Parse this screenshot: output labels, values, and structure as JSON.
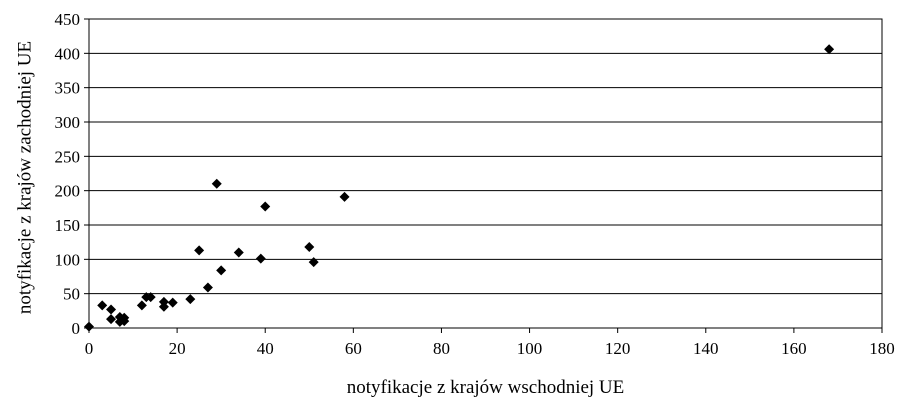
{
  "chart_data": {
    "type": "scatter",
    "xlabel": "notyfikacje z krajów wschodniej UE",
    "ylabel": "notyfikacje z krajów zachodniej UE",
    "xlim": [
      0,
      180
    ],
    "ylim": [
      0,
      450
    ],
    "x_ticks": [
      0,
      20,
      40,
      60,
      80,
      100,
      120,
      140,
      160,
      180
    ],
    "y_ticks": [
      0,
      50,
      100,
      150,
      200,
      250,
      300,
      350,
      400,
      450
    ],
    "grid": "horizontal",
    "marker": "diamond",
    "marker_color": "#000000",
    "points": [
      {
        "x": 0,
        "y": 2
      },
      {
        "x": 3,
        "y": 33
      },
      {
        "x": 5,
        "y": 27
      },
      {
        "x": 5,
        "y": 13
      },
      {
        "x": 7,
        "y": 16
      },
      {
        "x": 7,
        "y": 9
      },
      {
        "x": 8,
        "y": 15
      },
      {
        "x": 8,
        "y": 10
      },
      {
        "x": 12,
        "y": 33
      },
      {
        "x": 13,
        "y": 45
      },
      {
        "x": 14,
        "y": 45
      },
      {
        "x": 17,
        "y": 38
      },
      {
        "x": 17,
        "y": 31
      },
      {
        "x": 19,
        "y": 37
      },
      {
        "x": 23,
        "y": 42
      },
      {
        "x": 25,
        "y": 113
      },
      {
        "x": 27,
        "y": 59
      },
      {
        "x": 29,
        "y": 210
      },
      {
        "x": 30,
        "y": 84
      },
      {
        "x": 34,
        "y": 110
      },
      {
        "x": 39,
        "y": 101
      },
      {
        "x": 40,
        "y": 177
      },
      {
        "x": 50,
        "y": 118
      },
      {
        "x": 51,
        "y": 96
      },
      {
        "x": 58,
        "y": 191
      },
      {
        "x": 168,
        "y": 406
      }
    ]
  }
}
